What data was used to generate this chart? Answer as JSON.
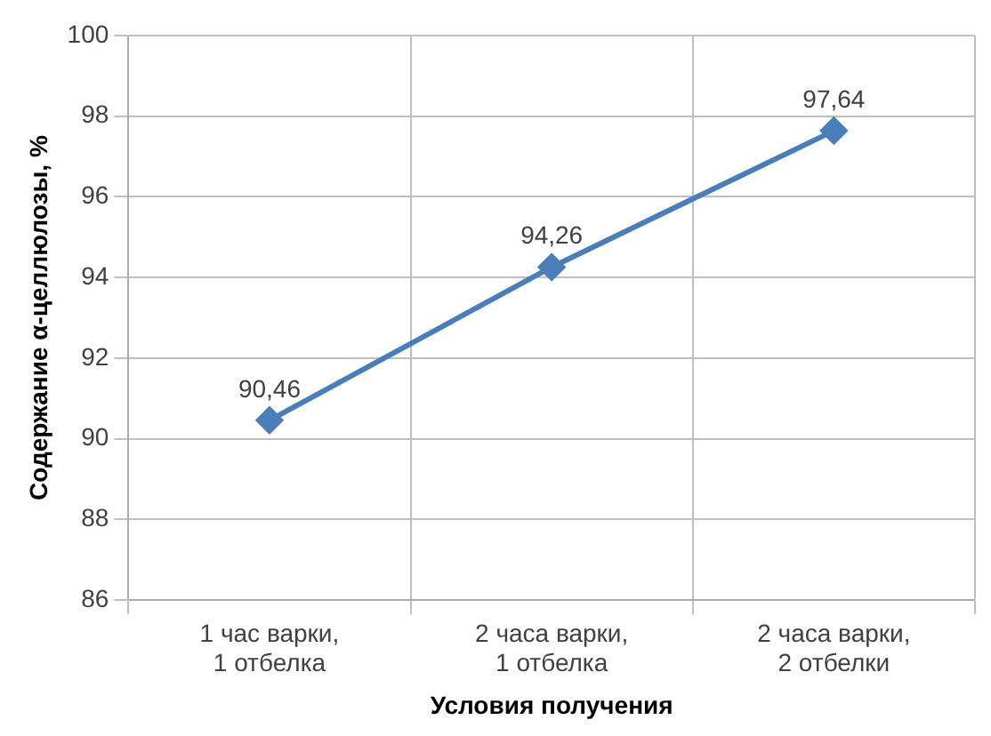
{
  "chart_data": {
    "type": "line",
    "xlabel": "Условия получения",
    "ylabel": "Содержание α-целлюлозы, %",
    "categories": [
      "1 час варки,\n1 отбелка",
      "2 часа варки,\n1 отбелка",
      "2 часа варки,\n2 отбелки"
    ],
    "series": [
      {
        "color": "#4a7ebb",
        "values": [
          90.46,
          94.26,
          97.64
        ],
        "value_labels": [
          "90,46",
          "94,26",
          "97,64"
        ]
      }
    ],
    "ylim": [
      86,
      100
    ],
    "yticks": [
      86,
      88,
      90,
      92,
      94,
      96,
      98,
      100
    ],
    "grid": true,
    "legend": false,
    "marker": "diamond",
    "line_style": "solid"
  }
}
